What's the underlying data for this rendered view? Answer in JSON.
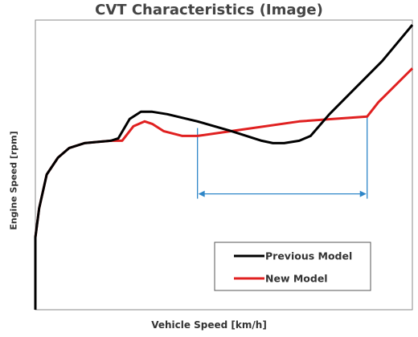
{
  "chart_data": {
    "type": "line",
    "title": "CVT Characteristics (Image)",
    "xlabel": "Vehicle Speed [km/h]",
    "ylabel": "Engine Speed [rpm]",
    "axis_ticks": "none",
    "grid": false,
    "legend_position": "bottom-right",
    "series": [
      {
        "name": "Previous Model",
        "color": "#000000",
        "points": [
          [
            0,
            0
          ],
          [
            0,
            30
          ],
          [
            1,
            42
          ],
          [
            3,
            56
          ],
          [
            6,
            63
          ],
          [
            9,
            67
          ],
          [
            13,
            69
          ],
          [
            20,
            70
          ],
          [
            22,
            71
          ],
          [
            25,
            79
          ],
          [
            28,
            82
          ],
          [
            31,
            82
          ],
          [
            35,
            81
          ],
          [
            43,
            78
          ],
          [
            52,
            74
          ],
          [
            60,
            70
          ],
          [
            63,
            69
          ],
          [
            66,
            69
          ],
          [
            70,
            70
          ],
          [
            73,
            72
          ],
          [
            78,
            81
          ],
          [
            85,
            92
          ],
          [
            92,
            103
          ],
          [
            100,
            118
          ]
        ]
      },
      {
        "name": "New Model",
        "color": "#e02020",
        "points": [
          [
            0,
            0
          ],
          [
            0,
            30
          ],
          [
            1,
            42
          ],
          [
            3,
            56
          ],
          [
            6,
            63
          ],
          [
            9,
            67
          ],
          [
            13,
            69
          ],
          [
            20,
            70
          ],
          [
            23,
            70
          ],
          [
            26,
            76
          ],
          [
            29,
            78
          ],
          [
            31,
            77
          ],
          [
            34,
            74
          ],
          [
            39,
            72
          ],
          [
            43,
            72
          ],
          [
            52,
            74
          ],
          [
            70,
            78
          ],
          [
            88,
            80
          ],
          [
            91,
            86
          ],
          [
            100,
            100
          ]
        ]
      }
    ],
    "annotations": [
      {
        "type": "range-arrow",
        "x_start": 43,
        "x_end": 88,
        "y": 48,
        "color": "#2e86c8"
      }
    ],
    "xlim": [
      0,
      100
    ],
    "ylim": [
      0,
      120
    ]
  }
}
